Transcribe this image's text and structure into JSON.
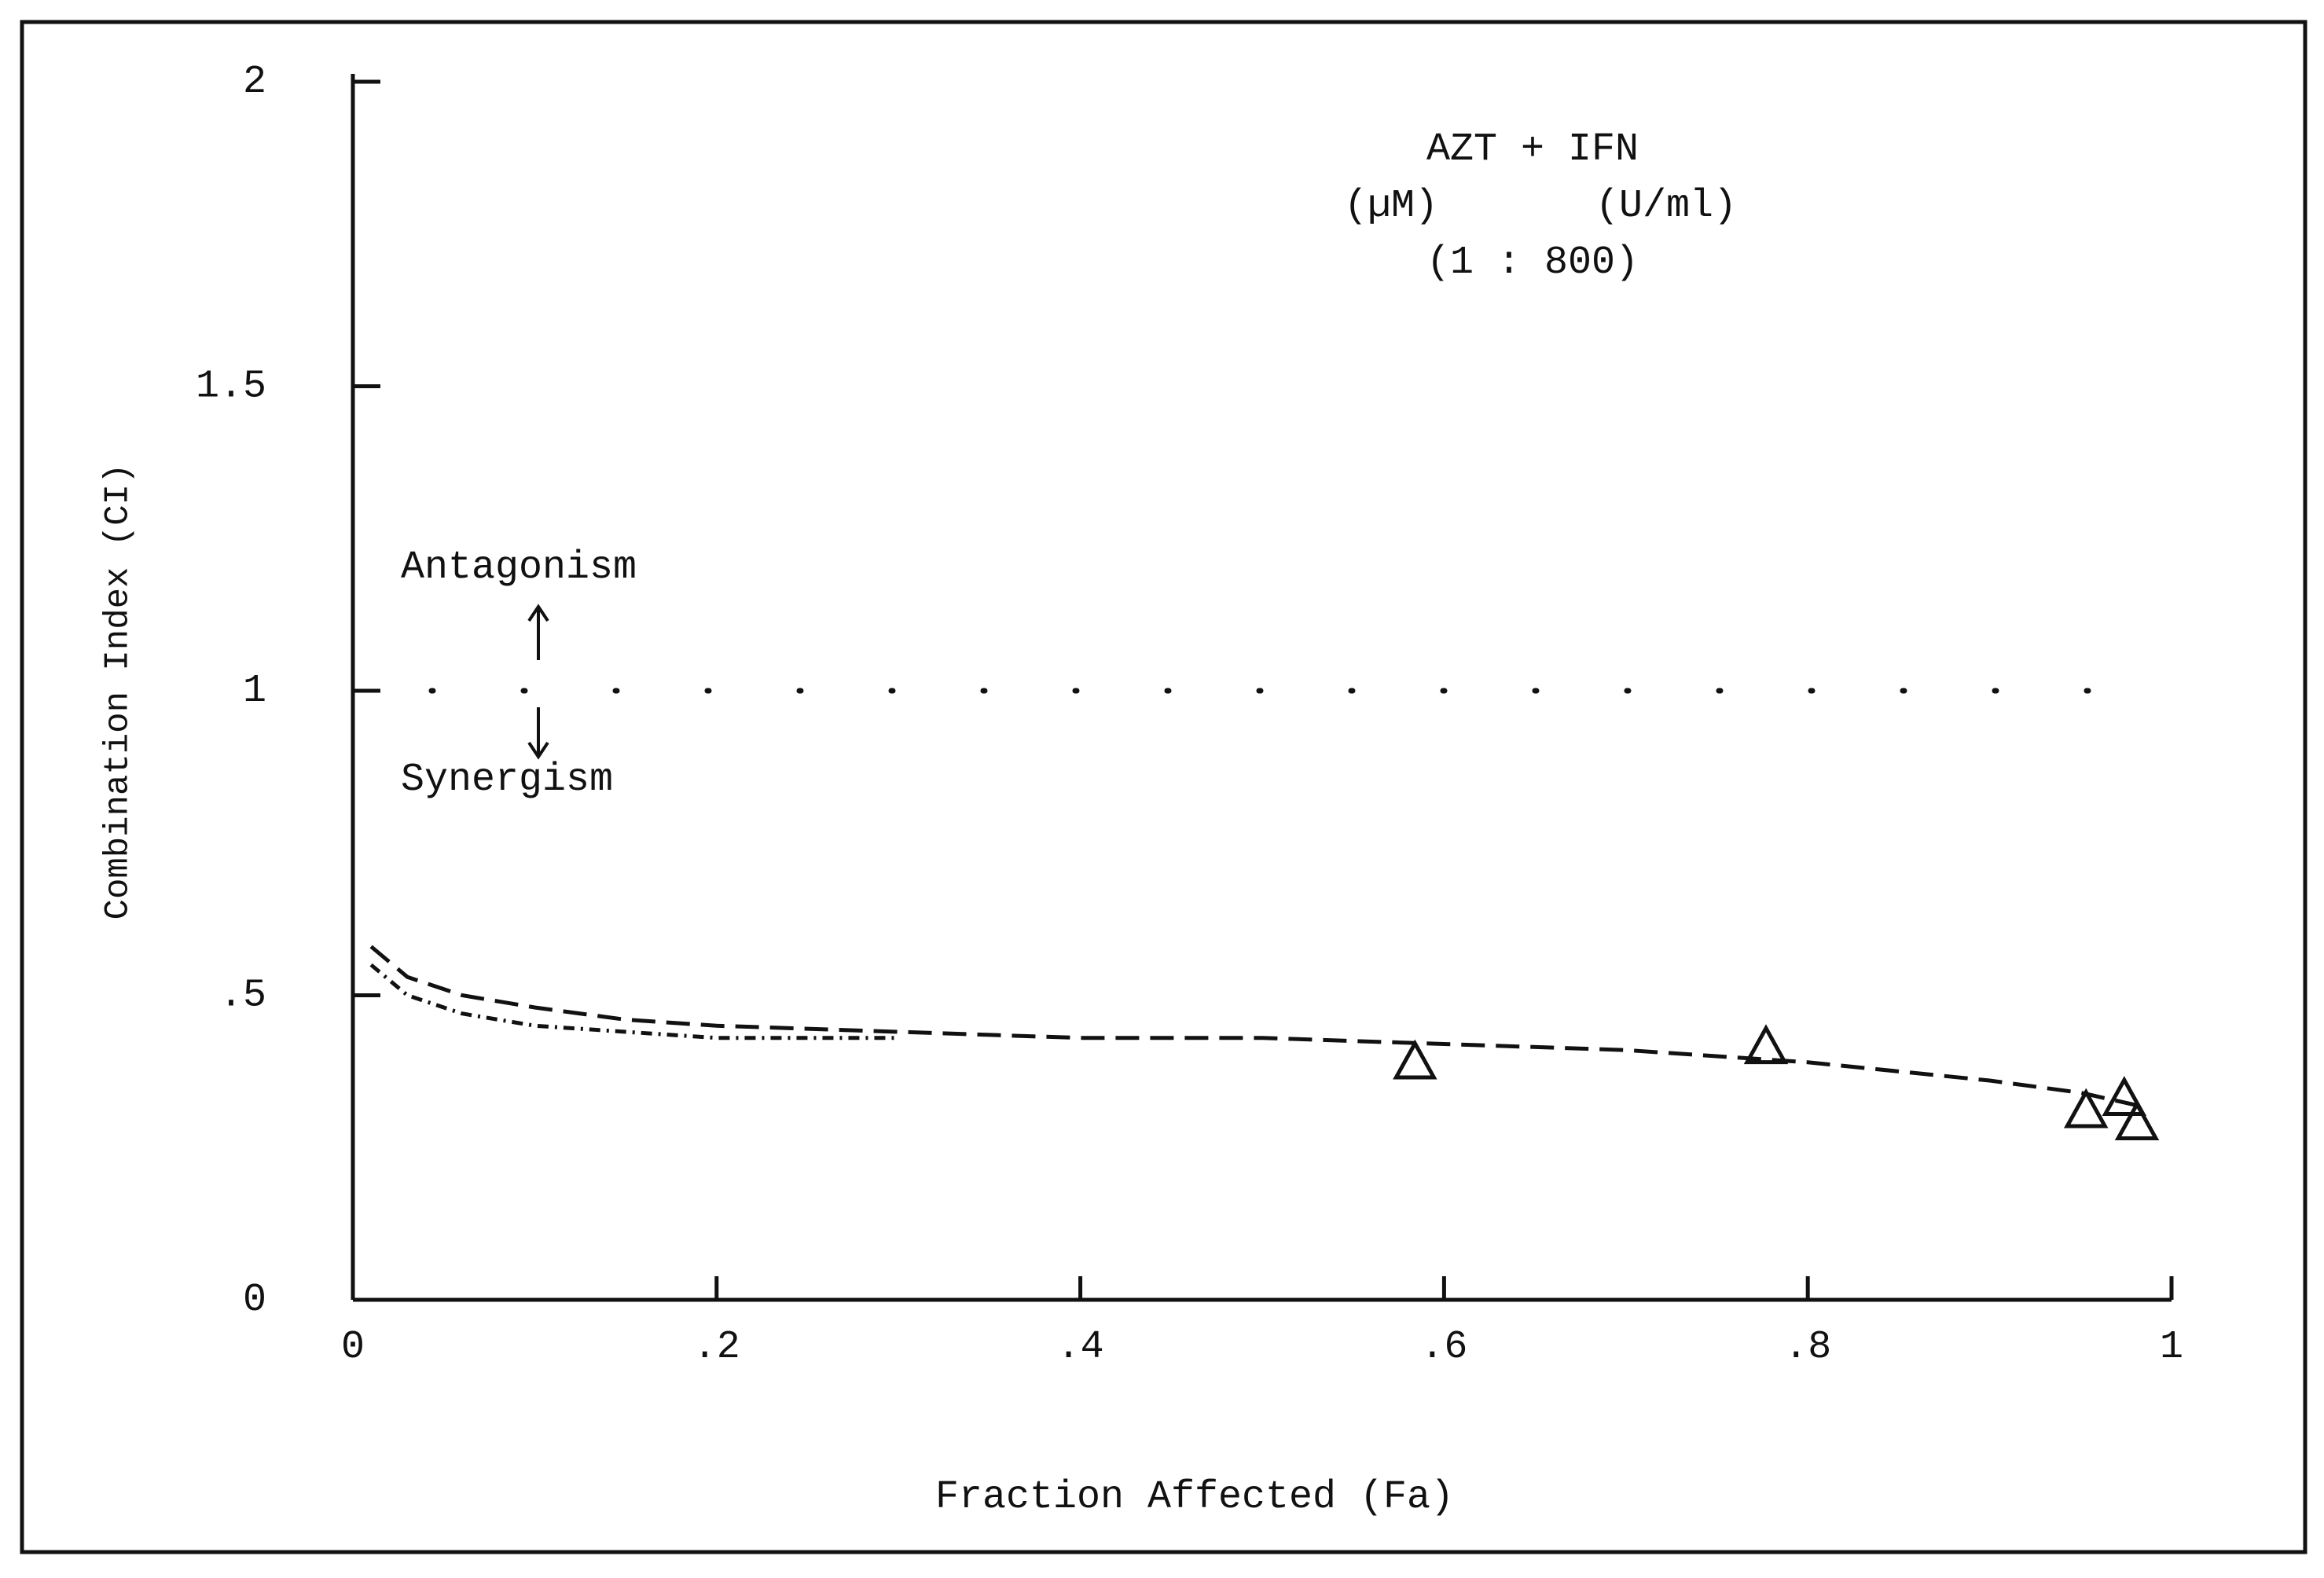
{
  "chart_data": {
    "type": "line",
    "annotations": [
      "AZT + IFN",
      "(µM)",
      "(U/ml)",
      "(1 : 800)",
      "Antagonism",
      "Synergism"
    ],
    "xlabel": "Fraction Affected (Fa)",
    "ylabel": "Combination Index (CI)",
    "x": [
      0.01,
      0.03,
      0.06,
      0.1,
      0.15,
      0.2,
      0.3,
      0.4,
      0.5,
      0.6,
      0.7,
      0.8,
      0.9,
      0.95,
      0.98
    ],
    "series": [
      {
        "color": "#111111",
        "dash": "30 14",
        "values": [
          0.58,
          0.53,
          0.5,
          0.48,
          0.46,
          0.45,
          0.44,
          0.43,
          0.43,
          0.42,
          0.41,
          0.39,
          0.36,
          0.34,
          0.32
        ]
      },
      {
        "color": "#111111",
        "dash": "14 8 3 8",
        "values": [
          0.55,
          0.5,
          0.47,
          0.45,
          0.44,
          0.43,
          0.43,
          null,
          null,
          null,
          null,
          null,
          null,
          null,
          null
        ]
      }
    ],
    "points": {
      "marker": "triangle",
      "x": [
        0.584,
        0.777,
        0.953,
        0.974,
        0.981
      ],
      "y": [
        0.39,
        0.415,
        0.31,
        0.33,
        0.29
      ]
    },
    "reference_line": 1,
    "xlim": [
      0,
      1
    ],
    "ylim": [
      0,
      2
    ],
    "xticks": [
      0,
      {
        "value": 0.2,
        "label": ".2"
      },
      {
        "value": 0.4,
        "label": ".4"
      },
      {
        "value": 0.6,
        "label": ".6"
      },
      {
        "value": 0.8,
        "label": ".8"
      },
      1
    ],
    "yticks": [
      0,
      {
        "value": 0.5,
        "label": ".5"
      },
      1,
      1.5,
      2
    ]
  }
}
